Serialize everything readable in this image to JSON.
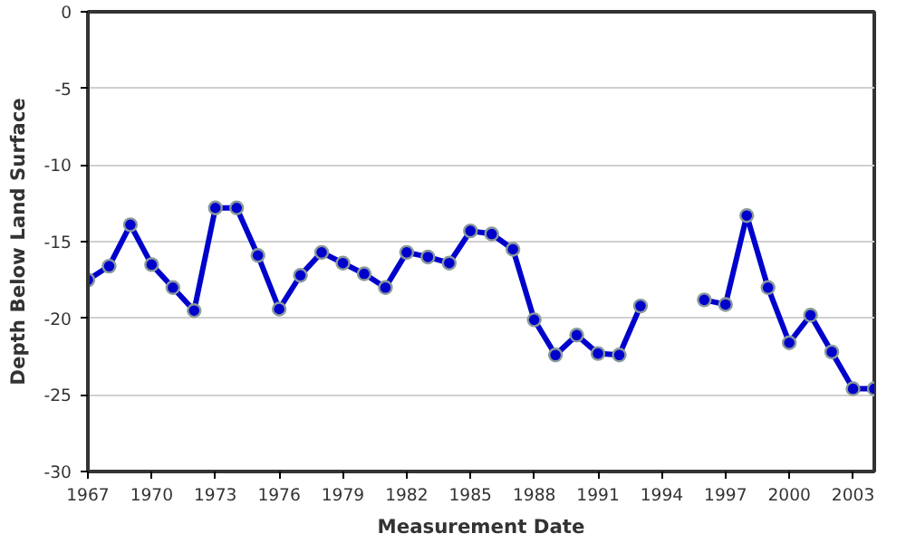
{
  "chart_data": {
    "type": "line",
    "xlabel": "Measurement Date",
    "ylabel": "Depth Below Land Surface",
    "x": [
      1967,
      1968,
      1969,
      1970,
      1971,
      1972,
      1973,
      1974,
      1975,
      1976,
      1977,
      1978,
      1979,
      1980,
      1981,
      1982,
      1983,
      1984,
      1985,
      1986,
      1987,
      1988,
      1989,
      1990,
      1991,
      1992,
      1993,
      1994,
      1995,
      1996,
      1997,
      1998,
      1999,
      2000,
      2001,
      2002,
      2003,
      2004
    ],
    "series": [
      {
        "color": "#0000cc",
        "values": [
          -17.5,
          -16.6,
          -13.9,
          -16.5,
          -18.0,
          -19.5,
          -12.8,
          -12.8,
          -15.9,
          -19.4,
          -17.2,
          -15.7,
          -16.4,
          -17.1,
          -18.0,
          -15.7,
          -16.0,
          -16.4,
          -14.3,
          -14.5,
          -15.5,
          -20.1,
          -22.4,
          -21.1,
          -22.3,
          -22.4,
          -19.2,
          null,
          null,
          -18.8,
          -19.1,
          -13.3,
          -18.0,
          -21.6,
          -19.8,
          -22.2,
          -24.6,
          -24.6
        ]
      }
    ],
    "xlim": [
      1967,
      2004
    ],
    "xticks": [
      1967,
      1970,
      1973,
      1976,
      1979,
      1982,
      1985,
      1988,
      1991,
      1994,
      1997,
      2000,
      2003
    ],
    "ylim": [
      -30,
      0
    ],
    "yticks": [
      -30,
      -25,
      -20,
      -15,
      -10,
      -5,
      0
    ],
    "grid": "y",
    "marker": "circle",
    "line_style": "solid"
  }
}
